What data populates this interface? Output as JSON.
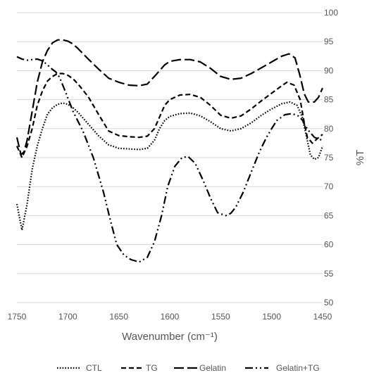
{
  "chart_data": {
    "type": "line",
    "title": "",
    "xlabel": "Wavenumber (cm⁻¹)",
    "ylabel": "%T",
    "xlim": [
      1750,
      1450
    ],
    "ylim": [
      50,
      100
    ],
    "x_reversed": true,
    "y_axis_position": "right",
    "xticks": [
      1750,
      1700,
      1650,
      1600,
      1550,
      1500,
      1450
    ],
    "yticks": [
      50,
      55,
      60,
      65,
      70,
      75,
      80,
      85,
      90,
      95,
      100
    ],
    "grid": "horizontal",
    "legend_position": "bottom",
    "series": [
      {
        "name": "CTL",
        "dash": "dotted",
        "points": [
          [
            1750,
            67
          ],
          [
            1745,
            62.5
          ],
          [
            1740,
            67
          ],
          [
            1735,
            73
          ],
          [
            1730,
            77
          ],
          [
            1725,
            80
          ],
          [
            1720,
            82.5
          ],
          [
            1715,
            83.6
          ],
          [
            1710,
            84.2
          ],
          [
            1705,
            84.4
          ],
          [
            1700,
            84.2
          ],
          [
            1695,
            83.6
          ],
          [
            1690,
            82.8
          ],
          [
            1680,
            80.8
          ],
          [
            1670,
            78.8
          ],
          [
            1660,
            77.2
          ],
          [
            1650,
            76.6
          ],
          [
            1640,
            76.5
          ],
          [
            1630,
            76.4
          ],
          [
            1622,
            76.6
          ],
          [
            1615,
            78
          ],
          [
            1610,
            80
          ],
          [
            1605,
            81.4
          ],
          [
            1600,
            82.1
          ],
          [
            1590,
            82.6
          ],
          [
            1580,
            82.7
          ],
          [
            1570,
            82.2
          ],
          [
            1560,
            81.2
          ],
          [
            1550,
            80
          ],
          [
            1540,
            79.6
          ],
          [
            1530,
            80
          ],
          [
            1520,
            81
          ],
          [
            1510,
            82.3
          ],
          [
            1500,
            83.4
          ],
          [
            1490,
            84.3
          ],
          [
            1482,
            84.6
          ],
          [
            1475,
            84
          ],
          [
            1470,
            82
          ],
          [
            1465,
            78
          ],
          [
            1462,
            75.5
          ],
          [
            1458,
            74.7
          ],
          [
            1454,
            75
          ],
          [
            1450,
            77
          ]
        ]
      },
      {
        "name": "TG",
        "dash": "dashed",
        "points": [
          [
            1750,
            77
          ],
          [
            1745,
            75
          ],
          [
            1740,
            77
          ],
          [
            1735,
            80
          ],
          [
            1730,
            84
          ],
          [
            1725,
            86.5
          ],
          [
            1720,
            88.2
          ],
          [
            1715,
            89
          ],
          [
            1710,
            89.5
          ],
          [
            1705,
            89.5
          ],
          [
            1700,
            89.2
          ],
          [
            1695,
            88.6
          ],
          [
            1690,
            87.7
          ],
          [
            1680,
            85.5
          ],
          [
            1670,
            82.5
          ],
          [
            1660,
            79.6
          ],
          [
            1650,
            78.8
          ],
          [
            1640,
            78.6
          ],
          [
            1630,
            78.5
          ],
          [
            1622,
            78.7
          ],
          [
            1615,
            80
          ],
          [
            1610,
            82
          ],
          [
            1605,
            84
          ],
          [
            1600,
            85
          ],
          [
            1590,
            85.8
          ],
          [
            1580,
            85.9
          ],
          [
            1570,
            85.4
          ],
          [
            1560,
            84
          ],
          [
            1550,
            82.3
          ],
          [
            1540,
            81.8
          ],
          [
            1530,
            82.2
          ],
          [
            1520,
            83.4
          ],
          [
            1510,
            84.8
          ],
          [
            1500,
            86.1
          ],
          [
            1490,
            87.4
          ],
          [
            1485,
            88
          ],
          [
            1478,
            87.5
          ],
          [
            1472,
            85
          ],
          [
            1468,
            81
          ],
          [
            1465,
            78.5
          ],
          [
            1460,
            77.5
          ],
          [
            1455,
            78.3
          ],
          [
            1450,
            79
          ]
        ]
      },
      {
        "name": "Gelatin",
        "dash": "long-dashed",
        "points": [
          [
            1750,
            78.5
          ],
          [
            1746,
            75.5
          ],
          [
            1743,
            76
          ],
          [
            1740,
            78
          ],
          [
            1735,
            83
          ],
          [
            1730,
            88
          ],
          [
            1725,
            91.5
          ],
          [
            1720,
            93.5
          ],
          [
            1715,
            94.8
          ],
          [
            1710,
            95.3
          ],
          [
            1705,
            95.3
          ],
          [
            1700,
            95.1
          ],
          [
            1695,
            94.6
          ],
          [
            1690,
            93.8
          ],
          [
            1680,
            92
          ],
          [
            1670,
            90.3
          ],
          [
            1660,
            88.7
          ],
          [
            1650,
            88
          ],
          [
            1640,
            87.5
          ],
          [
            1630,
            87.4
          ],
          [
            1622,
            87.7
          ],
          [
            1615,
            89
          ],
          [
            1610,
            90
          ],
          [
            1605,
            91
          ],
          [
            1600,
            91.6
          ],
          [
            1590,
            91.9
          ],
          [
            1580,
            91.9
          ],
          [
            1570,
            91.5
          ],
          [
            1560,
            90.4
          ],
          [
            1550,
            89
          ],
          [
            1540,
            88.5
          ],
          [
            1530,
            88.7
          ],
          [
            1520,
            89.5
          ],
          [
            1510,
            90.5
          ],
          [
            1500,
            91.5
          ],
          [
            1490,
            92.5
          ],
          [
            1483,
            92.9
          ],
          [
            1477,
            92.2
          ],
          [
            1472,
            89
          ],
          [
            1468,
            86
          ],
          [
            1464,
            84.6
          ],
          [
            1458,
            84.6
          ],
          [
            1454,
            85.4
          ],
          [
            1450,
            87
          ]
        ]
      },
      {
        "name": "Gelatin+TG",
        "dash": "dash-dot-dot",
        "points": [
          [
            1750,
            92.4
          ],
          [
            1745,
            92
          ],
          [
            1740,
            91.8
          ],
          [
            1735,
            91.9
          ],
          [
            1730,
            92
          ],
          [
            1725,
            91.7
          ],
          [
            1720,
            91
          ],
          [
            1715,
            90.2
          ],
          [
            1712,
            89.8
          ],
          [
            1708,
            88.8
          ],
          [
            1702,
            86.2
          ],
          [
            1695,
            83
          ],
          [
            1685,
            79.5
          ],
          [
            1675,
            75
          ],
          [
            1665,
            69
          ],
          [
            1658,
            64
          ],
          [
            1652,
            60
          ],
          [
            1645,
            58.2
          ],
          [
            1638,
            57.4
          ],
          [
            1630,
            57
          ],
          [
            1622,
            57.8
          ],
          [
            1615,
            60.5
          ],
          [
            1608,
            65
          ],
          [
            1602,
            70
          ],
          [
            1595,
            73.5
          ],
          [
            1588,
            75
          ],
          [
            1582,
            75.2
          ],
          [
            1575,
            74
          ],
          [
            1567,
            71
          ],
          [
            1560,
            68
          ],
          [
            1553,
            65.5
          ],
          [
            1545,
            65
          ],
          [
            1540,
            65.4
          ],
          [
            1535,
            66.5
          ],
          [
            1528,
            69
          ],
          [
            1520,
            72.5
          ],
          [
            1512,
            76
          ],
          [
            1505,
            78.5
          ],
          [
            1500,
            80
          ],
          [
            1495,
            81.4
          ],
          [
            1487,
            82.4
          ],
          [
            1480,
            82.6
          ],
          [
            1474,
            82.2
          ],
          [
            1470,
            81.5
          ],
          [
            1467,
            80.5
          ],
          [
            1463,
            79.5
          ],
          [
            1458,
            78.5
          ],
          [
            1454,
            78.2
          ],
          [
            1450,
            78
          ]
        ]
      }
    ]
  }
}
